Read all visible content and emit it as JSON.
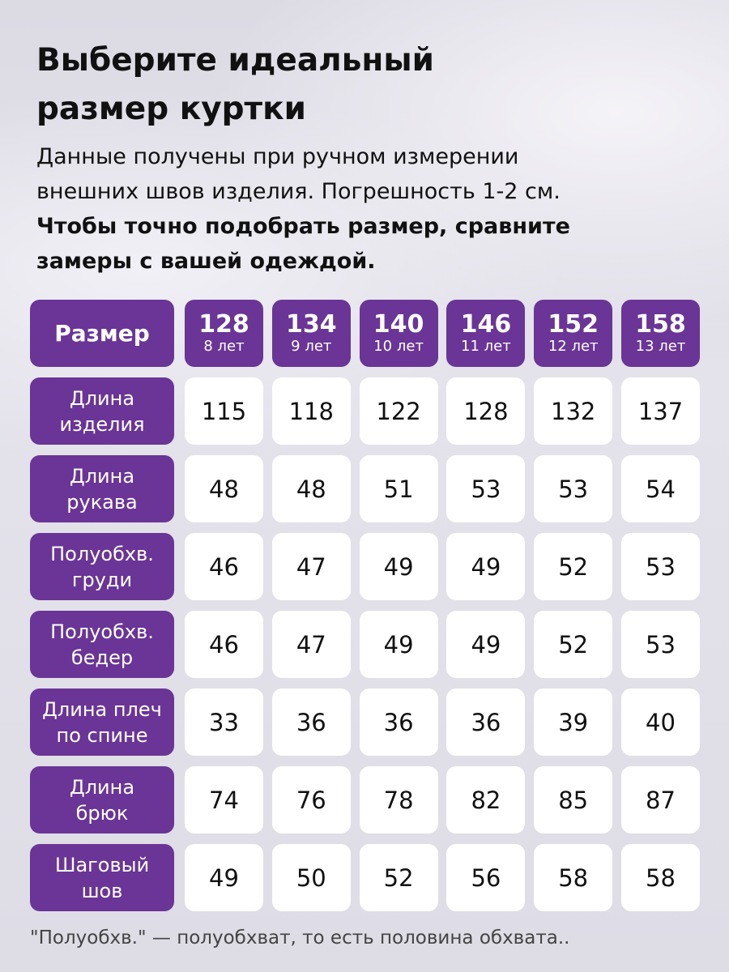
{
  "header": {
    "title": [
      "Выберите идеальный",
      "размер куртки"
    ],
    "subtitle": [
      "Данные получены при ручном измерении",
      "внешних швов изделия. Погрешность 1-2 см."
    ],
    "note": [
      "Чтобы точно подобрать размер, сравните",
      "замеры с вашей одеждой."
    ]
  },
  "table": {
    "corner": "Размер",
    "columns": [
      {
        "size": 128,
        "age": "8 лет"
      },
      {
        "size": 134,
        "age": "9 лет"
      },
      {
        "size": 140,
        "age": "10 лет"
      },
      {
        "size": 146,
        "age": "11 лет"
      },
      {
        "size": 152,
        "age": "12 лет"
      },
      {
        "size": 158,
        "age": "13 лет"
      }
    ],
    "rows": [
      {
        "label": [
          "Длина",
          "изделия"
        ],
        "values": [
          115,
          118,
          122,
          128,
          132,
          137
        ]
      },
      {
        "label": [
          "Длина",
          "рукава"
        ],
        "values": [
          48,
          48,
          51,
          53,
          53,
          54
        ]
      },
      {
        "label": [
          "Полуобхв.",
          "груди"
        ],
        "values": [
          46,
          47,
          49,
          49,
          52,
          53
        ]
      },
      {
        "label": [
          "Полуобхв.",
          "бедер"
        ],
        "values": [
          46,
          47,
          49,
          49,
          52,
          53
        ]
      },
      {
        "label": [
          "Длина плеч",
          "по спине"
        ],
        "values": [
          33,
          36,
          36,
          36,
          39,
          40
        ]
      },
      {
        "label": [
          "Длина",
          "брюк"
        ],
        "values": [
          74,
          76,
          78,
          82,
          85,
          87
        ]
      },
      {
        "label": [
          "Шаговый",
          "шов"
        ],
        "values": [
          49,
          50,
          52,
          56,
          58,
          58
        ]
      }
    ]
  },
  "footer": "\"Полуобхв.\" — полуобхват, то есть половина обхвата.."
}
